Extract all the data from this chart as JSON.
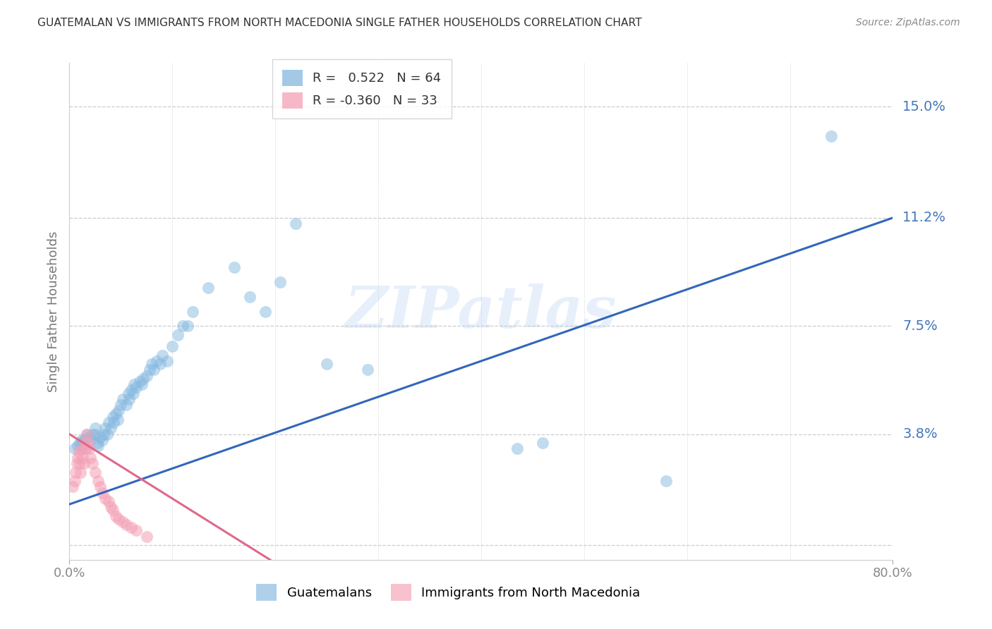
{
  "title": "GUATEMALAN VS IMMIGRANTS FROM NORTH MACEDONIA SINGLE FATHER HOUSEHOLDS CORRELATION CHART",
  "source": "Source: ZipAtlas.com",
  "ylabel": "Single Father Households",
  "watermark": "ZIPatlas",
  "xlim": [
    0.0,
    0.8
  ],
  "ylim": [
    -0.005,
    0.165
  ],
  "ytick_positions": [
    0.0,
    0.038,
    0.075,
    0.112,
    0.15
  ],
  "ytick_labels": [
    "",
    "3.8%",
    "7.5%",
    "11.2%",
    "15.0%"
  ],
  "xtick_positions": [
    0.0,
    0.8
  ],
  "xtick_labels": [
    "0.0%",
    "80.0%"
  ],
  "xgrid_positions": [
    0.1,
    0.2,
    0.3,
    0.4,
    0.5,
    0.6,
    0.7
  ],
  "blue_color": "#85B8E0",
  "pink_color": "#F4A0B5",
  "blue_line_color": "#3366BB",
  "pink_line_color": "#E06888",
  "right_label_color": "#4477BB",
  "blue_regression": [
    0.0,
    0.8,
    0.014,
    0.112
  ],
  "pink_regression": [
    0.0,
    0.195,
    0.038,
    -0.005
  ],
  "blue_x": [
    0.005,
    0.008,
    0.01,
    0.012,
    0.013,
    0.015,
    0.015,
    0.017,
    0.018,
    0.02,
    0.022,
    0.025,
    0.025,
    0.027,
    0.028,
    0.03,
    0.032,
    0.033,
    0.035,
    0.037,
    0.038,
    0.04,
    0.042,
    0.043,
    0.045,
    0.047,
    0.048,
    0.05,
    0.052,
    0.055,
    0.057,
    0.058,
    0.06,
    0.062,
    0.063,
    0.065,
    0.068,
    0.07,
    0.072,
    0.075,
    0.078,
    0.08,
    0.082,
    0.085,
    0.088,
    0.09,
    0.095,
    0.1,
    0.105,
    0.11,
    0.115,
    0.12,
    0.135,
    0.16,
    0.175,
    0.19,
    0.205,
    0.22,
    0.25,
    0.29,
    0.435,
    0.46,
    0.58,
    0.74
  ],
  "blue_y": [
    0.033,
    0.034,
    0.035,
    0.036,
    0.035,
    0.033,
    0.036,
    0.038,
    0.037,
    0.036,
    0.038,
    0.038,
    0.04,
    0.035,
    0.034,
    0.037,
    0.036,
    0.038,
    0.04,
    0.038,
    0.042,
    0.04,
    0.044,
    0.042,
    0.045,
    0.043,
    0.046,
    0.048,
    0.05,
    0.048,
    0.052,
    0.05,
    0.053,
    0.052,
    0.055,
    0.054,
    0.056,
    0.055,
    0.057,
    0.058,
    0.06,
    0.062,
    0.06,
    0.063,
    0.062,
    0.065,
    0.063,
    0.068,
    0.072,
    0.075,
    0.075,
    0.08,
    0.088,
    0.095,
    0.085,
    0.08,
    0.09,
    0.11,
    0.062,
    0.06,
    0.033,
    0.035,
    0.022,
    0.14
  ],
  "pink_x": [
    0.003,
    0.005,
    0.006,
    0.007,
    0.008,
    0.009,
    0.01,
    0.011,
    0.012,
    0.013,
    0.014,
    0.015,
    0.016,
    0.017,
    0.018,
    0.019,
    0.02,
    0.022,
    0.025,
    0.028,
    0.03,
    0.032,
    0.035,
    0.038,
    0.04,
    0.042,
    0.045,
    0.048,
    0.052,
    0.055,
    0.06,
    0.065,
    0.075
  ],
  "pink_y": [
    0.02,
    0.022,
    0.025,
    0.028,
    0.03,
    0.032,
    0.028,
    0.025,
    0.033,
    0.03,
    0.028,
    0.035,
    0.033,
    0.038,
    0.035,
    0.033,
    0.03,
    0.028,
    0.025,
    0.022,
    0.02,
    0.018,
    0.016,
    0.015,
    0.013,
    0.012,
    0.01,
    0.009,
    0.008,
    0.007,
    0.006,
    0.005,
    0.003
  ]
}
